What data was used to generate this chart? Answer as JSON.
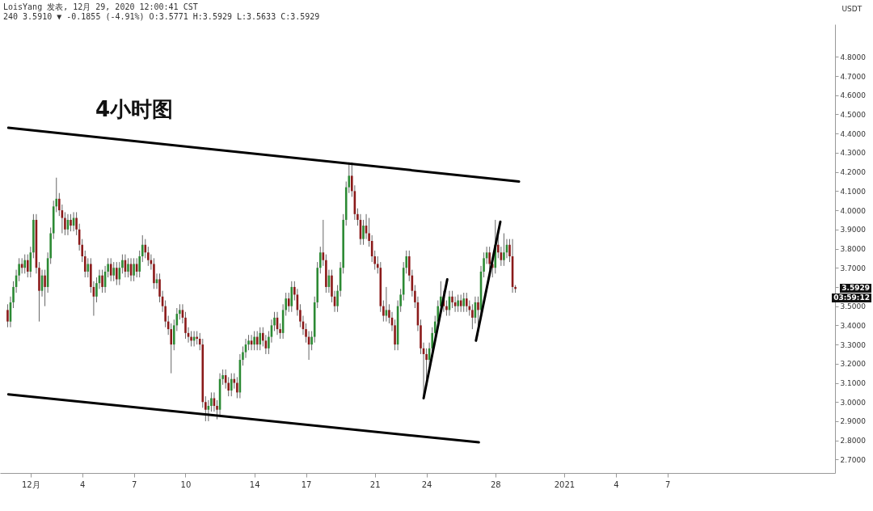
{
  "chart_data": {
    "type": "candlestick",
    "title": "4小时图",
    "ylabel": "USDT",
    "annotations": [
      "LoisYang 发表, 12月 29, 2020 12:00:41 CST",
      "240 3.5910 ▼ -0.1855 (-4.91%) O:3.5771 H:3.5929 L:3.5633 C:3.5929",
      "3.5929",
      "03:59:12"
    ],
    "xlim": [
      "2020-11-29T11:00",
      "2021-01-16T12:00"
    ],
    "ylim": [
      2.63,
      4.97
    ],
    "xticks": [
      {
        "value": "2020-12-01",
        "label": "12月"
      },
      {
        "value": "2020-12-04",
        "label": "4"
      },
      {
        "value": "2020-12-07",
        "label": "7"
      },
      {
        "value": "2020-12-10",
        "label": "10"
      },
      {
        "value": "2020-12-14",
        "label": "14"
      },
      {
        "value": "2020-12-17",
        "label": "17"
      },
      {
        "value": "2020-12-21",
        "label": "21"
      },
      {
        "value": "2020-12-24",
        "label": "24"
      },
      {
        "value": "2020-12-28",
        "label": "28"
      },
      {
        "value": "2021-01-01",
        "label": "2021"
      },
      {
        "value": "2021-01-04",
        "label": "4"
      },
      {
        "value": "2021-01-07",
        "label": "7"
      }
    ],
    "yticks": [
      {
        "value": 2.7,
        "label": "2.7000"
      },
      {
        "value": 2.8,
        "label": "2.8000"
      },
      {
        "value": 2.9,
        "label": "2.9000"
      },
      {
        "value": 3.0,
        "label": "3.0000"
      },
      {
        "value": 3.1,
        "label": "3.1000"
      },
      {
        "value": 3.2,
        "label": "3.2000"
      },
      {
        "value": 3.3,
        "label": "3.3000"
      },
      {
        "value": 3.4,
        "label": "3.4000"
      },
      {
        "value": 3.5,
        "label": "3.5000"
      },
      {
        "value": 3.6,
        "label": null
      },
      {
        "value": 3.7,
        "label": "3.7000"
      },
      {
        "value": 3.8,
        "label": "3.8000"
      },
      {
        "value": 3.9,
        "label": "3.9000"
      },
      {
        "value": 4.0,
        "label": "4.0000"
      },
      {
        "value": 4.1,
        "label": "4.1000"
      },
      {
        "value": 4.2,
        "label": "4.2000"
      },
      {
        "value": 4.3,
        "label": "4.3000"
      },
      {
        "value": 4.4,
        "label": "4.4000"
      },
      {
        "value": 4.5,
        "label": "4.5000"
      },
      {
        "value": 4.6,
        "label": "4.6000"
      },
      {
        "value": 4.7,
        "label": "4.7000"
      },
      {
        "value": 4.8,
        "label": "4.8000"
      }
    ],
    "x": [
      "2020-11-29T16:00",
      "2020-11-29T20:00",
      "2020-11-30T00:00",
      "2020-11-30T04:00",
      "2020-11-30T08:00",
      "2020-11-30T12:00",
      "2020-11-30T16:00",
      "2020-11-30T20:00",
      "2020-12-01T00:00",
      "2020-12-01T04:00",
      "2020-12-01T08:00",
      "2020-12-01T12:00",
      "2020-12-01T16:00",
      "2020-12-01T20:00",
      "2020-12-02T00:00",
      "2020-12-02T04:00",
      "2020-12-02T08:00",
      "2020-12-02T12:00",
      "2020-12-02T16:00",
      "2020-12-02T20:00",
      "2020-12-03T00:00",
      "2020-12-03T04:00",
      "2020-12-03T08:00",
      "2020-12-03T12:00",
      "2020-12-03T16:00",
      "2020-12-03T20:00",
      "2020-12-04T00:00",
      "2020-12-04T04:00",
      "2020-12-04T08:00",
      "2020-12-04T12:00",
      "2020-12-04T16:00",
      "2020-12-04T20:00",
      "2020-12-05T00:00",
      "2020-12-05T04:00",
      "2020-12-05T08:00",
      "2020-12-05T12:00",
      "2020-12-05T16:00",
      "2020-12-05T20:00",
      "2020-12-06T00:00",
      "2020-12-06T04:00",
      "2020-12-06T08:00",
      "2020-12-06T12:00",
      "2020-12-06T16:00",
      "2020-12-06T20:00",
      "2020-12-07T00:00",
      "2020-12-07T04:00",
      "2020-12-07T08:00",
      "2020-12-07T12:00",
      "2020-12-07T16:00",
      "2020-12-07T20:00",
      "2020-12-08T00:00",
      "2020-12-08T04:00",
      "2020-12-08T08:00",
      "2020-12-08T12:00",
      "2020-12-08T16:00",
      "2020-12-08T20:00",
      "2020-12-09T00:00",
      "2020-12-09T04:00",
      "2020-12-09T08:00",
      "2020-12-09T12:00",
      "2020-12-09T16:00",
      "2020-12-09T20:00",
      "2020-12-10T00:00",
      "2020-12-10T04:00",
      "2020-12-10T08:00",
      "2020-12-10T12:00",
      "2020-12-10T16:00",
      "2020-12-10T20:00",
      "2020-12-11T00:00",
      "2020-12-11T04:00",
      "2020-12-11T08:00",
      "2020-12-11T12:00",
      "2020-12-11T16:00",
      "2020-12-11T20:00",
      "2020-12-12T00:00",
      "2020-12-12T04:00",
      "2020-12-12T08:00",
      "2020-12-12T12:00",
      "2020-12-12T16:00",
      "2020-12-12T20:00",
      "2020-12-13T00:00",
      "2020-12-13T04:00",
      "2020-12-13T08:00",
      "2020-12-13T12:00",
      "2020-12-13T16:00",
      "2020-12-13T20:00",
      "2020-12-14T00:00",
      "2020-12-14T04:00",
      "2020-12-14T08:00",
      "2020-12-14T12:00",
      "2020-12-14T16:00",
      "2020-12-14T20:00",
      "2020-12-15T00:00",
      "2020-12-15T04:00",
      "2020-12-15T08:00",
      "2020-12-15T12:00",
      "2020-12-15T16:00",
      "2020-12-15T20:00",
      "2020-12-16T00:00",
      "2020-12-16T04:00",
      "2020-12-16T08:00",
      "2020-12-16T12:00",
      "2020-12-16T16:00",
      "2020-12-16T20:00",
      "2020-12-17T00:00",
      "2020-12-17T04:00",
      "2020-12-17T08:00",
      "2020-12-17T12:00",
      "2020-12-17T16:00",
      "2020-12-17T20:00",
      "2020-12-18T00:00",
      "2020-12-18T04:00",
      "2020-12-18T08:00",
      "2020-12-18T12:00",
      "2020-12-18T16:00",
      "2020-12-18T20:00",
      "2020-12-19T00:00",
      "2020-12-19T04:00",
      "2020-12-19T08:00",
      "2020-12-19T12:00",
      "2020-12-19T16:00",
      "2020-12-19T20:00",
      "2020-12-20T00:00",
      "2020-12-20T04:00",
      "2020-12-20T08:00",
      "2020-12-20T12:00",
      "2020-12-20T16:00",
      "2020-12-20T20:00",
      "2020-12-21T00:00",
      "2020-12-21T04:00",
      "2020-12-21T08:00",
      "2020-12-21T12:00",
      "2020-12-21T16:00",
      "2020-12-21T20:00",
      "2020-12-22T00:00",
      "2020-12-22T04:00",
      "2020-12-22T08:00",
      "2020-12-22T12:00",
      "2020-12-22T16:00",
      "2020-12-22T20:00",
      "2020-12-23T00:00",
      "2020-12-23T04:00",
      "2020-12-23T08:00",
      "2020-12-23T12:00",
      "2020-12-23T16:00",
      "2020-12-23T20:00",
      "2020-12-24T00:00",
      "2020-12-24T04:00",
      "2020-12-24T08:00",
      "2020-12-24T12:00",
      "2020-12-24T16:00",
      "2020-12-24T20:00",
      "2020-12-25T00:00",
      "2020-12-25T04:00",
      "2020-12-25T08:00",
      "2020-12-25T12:00",
      "2020-12-25T16:00",
      "2020-12-25T20:00",
      "2020-12-26T00:00",
      "2020-12-26T04:00",
      "2020-12-26T08:00",
      "2020-12-26T12:00",
      "2020-12-26T16:00",
      "2020-12-26T20:00",
      "2020-12-27T00:00",
      "2020-12-27T04:00",
      "2020-12-27T08:00",
      "2020-12-27T12:00",
      "2020-12-27T16:00",
      "2020-12-27T20:00",
      "2020-12-28T00:00",
      "2020-12-28T04:00",
      "2020-12-28T08:00",
      "2020-12-28T12:00",
      "2020-12-28T16:00",
      "2020-12-28T20:00",
      "2020-12-29T00:00",
      "2020-12-29T04:00"
    ],
    "ohlc": [
      [
        3.48,
        3.51,
        3.39,
        3.42
      ],
      [
        3.42,
        3.55,
        3.39,
        3.52
      ],
      [
        3.52,
        3.63,
        3.49,
        3.6
      ],
      [
        3.6,
        3.69,
        3.57,
        3.66
      ],
      [
        3.66,
        3.75,
        3.63,
        3.72
      ],
      [
        3.72,
        3.75,
        3.67,
        3.7
      ],
      [
        3.7,
        3.77,
        3.67,
        3.74
      ],
      [
        3.74,
        3.77,
        3.65,
        3.68
      ],
      [
        3.68,
        3.81,
        3.65,
        3.78
      ],
      [
        3.78,
        3.98,
        3.75,
        3.95
      ],
      [
        3.95,
        3.98,
        3.67,
        3.7
      ],
      [
        3.7,
        3.73,
        3.42,
        3.58
      ],
      [
        3.58,
        3.69,
        3.55,
        3.66
      ],
      [
        3.66,
        3.69,
        3.5,
        3.6
      ],
      [
        3.6,
        3.78,
        3.57,
        3.75
      ],
      [
        3.75,
        3.91,
        3.72,
        3.88
      ],
      [
        3.88,
        4.05,
        3.85,
        4.02
      ],
      [
        4.02,
        4.17,
        3.99,
        4.06
      ],
      [
        4.06,
        4.09,
        3.97,
        4.0
      ],
      [
        4.0,
        4.03,
        3.88,
        3.96
      ],
      [
        3.96,
        3.99,
        3.87,
        3.9
      ],
      [
        3.9,
        3.98,
        3.87,
        3.95
      ],
      [
        3.95,
        3.98,
        3.89,
        3.92
      ],
      [
        3.92,
        3.99,
        3.89,
        3.96
      ],
      [
        3.96,
        3.99,
        3.87,
        3.9
      ],
      [
        3.9,
        3.93,
        3.79,
        3.82
      ],
      [
        3.82,
        3.85,
        3.73,
        3.76
      ],
      [
        3.76,
        3.79,
        3.65,
        3.68
      ],
      [
        3.68,
        3.75,
        3.65,
        3.72
      ],
      [
        3.72,
        3.75,
        3.57,
        3.6
      ],
      [
        3.6,
        3.63,
        3.45,
        3.55
      ],
      [
        3.55,
        3.65,
        3.52,
        3.62
      ],
      [
        3.62,
        3.69,
        3.59,
        3.66
      ],
      [
        3.66,
        3.69,
        3.57,
        3.6
      ],
      [
        3.6,
        3.71,
        3.57,
        3.68
      ],
      [
        3.68,
        3.75,
        3.65,
        3.72
      ],
      [
        3.72,
        3.75,
        3.63,
        3.66
      ],
      [
        3.66,
        3.73,
        3.63,
        3.7
      ],
      [
        3.7,
        3.73,
        3.61,
        3.64
      ],
      [
        3.64,
        3.73,
        3.61,
        3.7
      ],
      [
        3.7,
        3.77,
        3.67,
        3.74
      ],
      [
        3.74,
        3.77,
        3.65,
        3.68
      ],
      [
        3.68,
        3.75,
        3.65,
        3.72
      ],
      [
        3.72,
        3.75,
        3.63,
        3.66
      ],
      [
        3.66,
        3.75,
        3.63,
        3.72
      ],
      [
        3.72,
        3.75,
        3.65,
        3.68
      ],
      [
        3.68,
        3.79,
        3.65,
        3.76
      ],
      [
        3.76,
        3.87,
        3.73,
        3.82
      ],
      [
        3.82,
        3.85,
        3.75,
        3.78
      ],
      [
        3.78,
        3.81,
        3.71,
        3.74
      ],
      [
        3.74,
        3.77,
        3.69,
        3.72
      ],
      [
        3.72,
        3.75,
        3.59,
        3.62
      ],
      [
        3.62,
        3.67,
        3.59,
        3.64
      ],
      [
        3.64,
        3.67,
        3.52,
        3.55
      ],
      [
        3.55,
        3.58,
        3.47,
        3.5
      ],
      [
        3.5,
        3.53,
        3.39,
        3.42
      ],
      [
        3.42,
        3.45,
        3.35,
        3.38
      ],
      [
        3.38,
        3.41,
        3.15,
        3.3
      ],
      [
        3.3,
        3.43,
        3.27,
        3.4
      ],
      [
        3.4,
        3.49,
        3.37,
        3.46
      ],
      [
        3.46,
        3.51,
        3.43,
        3.48
      ],
      [
        3.48,
        3.51,
        3.41,
        3.44
      ],
      [
        3.44,
        3.47,
        3.33,
        3.36
      ],
      [
        3.36,
        3.39,
        3.31,
        3.34
      ],
      [
        3.34,
        3.37,
        3.29,
        3.32
      ],
      [
        3.32,
        3.37,
        3.29,
        3.34
      ],
      [
        3.34,
        3.37,
        3.3,
        3.33
      ],
      [
        3.33,
        3.36,
        3.27,
        3.3
      ],
      [
        3.3,
        3.33,
        2.97,
        3.0
      ],
      [
        3.0,
        3.03,
        2.9,
        2.96
      ],
      [
        2.96,
        3.01,
        2.9,
        2.98
      ],
      [
        2.98,
        3.05,
        2.95,
        3.02
      ],
      [
        3.02,
        3.05,
        2.95,
        2.98
      ],
      [
        2.98,
        3.01,
        2.91,
        2.96
      ],
      [
        2.96,
        3.15,
        2.93,
        3.12
      ],
      [
        3.12,
        3.17,
        3.09,
        3.14
      ],
      [
        3.14,
        3.17,
        3.07,
        3.1
      ],
      [
        3.1,
        3.13,
        3.03,
        3.06
      ],
      [
        3.06,
        3.15,
        3.03,
        3.12
      ],
      [
        3.12,
        3.15,
        3.07,
        3.1
      ],
      [
        3.1,
        3.13,
        3.02,
        3.05
      ],
      [
        3.05,
        3.25,
        3.02,
        3.22
      ],
      [
        3.22,
        3.29,
        3.19,
        3.26
      ],
      [
        3.26,
        3.33,
        3.23,
        3.3
      ],
      [
        3.3,
        3.35,
        3.27,
        3.32
      ],
      [
        3.32,
        3.35,
        3.27,
        3.3
      ],
      [
        3.3,
        3.37,
        3.27,
        3.34
      ],
      [
        3.34,
        3.37,
        3.27,
        3.3
      ],
      [
        3.3,
        3.39,
        3.27,
        3.36
      ],
      [
        3.36,
        3.39,
        3.29,
        3.32
      ],
      [
        3.32,
        3.35,
        3.25,
        3.28
      ],
      [
        3.28,
        3.37,
        3.25,
        3.34
      ],
      [
        3.34,
        3.43,
        3.31,
        3.4
      ],
      [
        3.4,
        3.47,
        3.37,
        3.44
      ],
      [
        3.44,
        3.47,
        3.35,
        3.38
      ],
      [
        3.38,
        3.41,
        3.33,
        3.36
      ],
      [
        3.36,
        3.51,
        3.33,
        3.48
      ],
      [
        3.48,
        3.57,
        3.45,
        3.54
      ],
      [
        3.54,
        3.57,
        3.47,
        3.5
      ],
      [
        3.5,
        3.63,
        3.47,
        3.6
      ],
      [
        3.6,
        3.63,
        3.53,
        3.56
      ],
      [
        3.56,
        3.59,
        3.45,
        3.48
      ],
      [
        3.48,
        3.51,
        3.39,
        3.42
      ],
      [
        3.42,
        3.45,
        3.35,
        3.38
      ],
      [
        3.38,
        3.41,
        3.31,
        3.34
      ],
      [
        3.34,
        3.37,
        3.22,
        3.3
      ],
      [
        3.3,
        3.37,
        3.27,
        3.34
      ],
      [
        3.34,
        3.55,
        3.31,
        3.52
      ],
      [
        3.52,
        3.73,
        3.49,
        3.7
      ],
      [
        3.7,
        3.81,
        3.67,
        3.78
      ],
      [
        3.78,
        3.95,
        3.71,
        3.74
      ],
      [
        3.74,
        3.77,
        3.57,
        3.6
      ],
      [
        3.6,
        3.69,
        3.57,
        3.66
      ],
      [
        3.66,
        3.69,
        3.52,
        3.55
      ],
      [
        3.55,
        3.58,
        3.47,
        3.5
      ],
      [
        3.5,
        3.61,
        3.47,
        3.58
      ],
      [
        3.58,
        3.73,
        3.55,
        3.7
      ],
      [
        3.7,
        3.98,
        3.67,
        3.95
      ],
      [
        3.95,
        4.15,
        3.92,
        4.12
      ],
      [
        4.12,
        4.25,
        4.09,
        4.18
      ],
      [
        4.18,
        4.25,
        4.07,
        4.1
      ],
      [
        4.1,
        4.13,
        3.95,
        3.98
      ],
      [
        3.98,
        4.01,
        3.92,
        3.95
      ],
      [
        3.95,
        3.98,
        3.82,
        3.85
      ],
      [
        3.85,
        3.95,
        3.82,
        3.92
      ],
      [
        3.92,
        3.98,
        3.85,
        3.88
      ],
      [
        3.88,
        3.96,
        3.81,
        3.84
      ],
      [
        3.84,
        3.87,
        3.73,
        3.76
      ],
      [
        3.76,
        3.79,
        3.69,
        3.72
      ],
      [
        3.72,
        3.76,
        3.67,
        3.7
      ],
      [
        3.7,
        3.73,
        3.47,
        3.5
      ],
      [
        3.5,
        3.53,
        3.42,
        3.45
      ],
      [
        3.45,
        3.6,
        3.42,
        3.48
      ],
      [
        3.48,
        3.51,
        3.41,
        3.44
      ],
      [
        3.44,
        3.47,
        3.37,
        3.4
      ],
      [
        3.4,
        3.43,
        3.27,
        3.3
      ],
      [
        3.3,
        3.53,
        3.27,
        3.5
      ],
      [
        3.5,
        3.59,
        3.47,
        3.56
      ],
      [
        3.56,
        3.73,
        3.53,
        3.7
      ],
      [
        3.7,
        3.79,
        3.67,
        3.76
      ],
      [
        3.76,
        3.79,
        3.63,
        3.66
      ],
      [
        3.66,
        3.69,
        3.55,
        3.58
      ],
      [
        3.58,
        3.61,
        3.49,
        3.52
      ],
      [
        3.52,
        3.55,
        3.37,
        3.4
      ],
      [
        3.4,
        3.43,
        3.25,
        3.28
      ],
      [
        3.28,
        3.31,
        3.02,
        3.25
      ],
      [
        3.25,
        3.28,
        3.12,
        3.22
      ],
      [
        3.22,
        3.31,
        3.19,
        3.28
      ],
      [
        3.28,
        3.39,
        3.25,
        3.36
      ],
      [
        3.36,
        3.45,
        3.33,
        3.42
      ],
      [
        3.42,
        3.53,
        3.39,
        3.5
      ],
      [
        3.5,
        3.63,
        3.47,
        3.55
      ],
      [
        3.55,
        3.58,
        3.47,
        3.5
      ],
      [
        3.5,
        3.53,
        3.45,
        3.48
      ],
      [
        3.48,
        3.58,
        3.45,
        3.55
      ],
      [
        3.55,
        3.58,
        3.49,
        3.52
      ],
      [
        3.52,
        3.55,
        3.47,
        3.5
      ],
      [
        3.5,
        3.56,
        3.47,
        3.53
      ],
      [
        3.53,
        3.56,
        3.47,
        3.5
      ],
      [
        3.5,
        3.57,
        3.47,
        3.54
      ],
      [
        3.54,
        3.57,
        3.47,
        3.5
      ],
      [
        3.5,
        3.53,
        3.45,
        3.48
      ],
      [
        3.48,
        3.51,
        3.38,
        3.44
      ],
      [
        3.44,
        3.55,
        3.41,
        3.52
      ],
      [
        3.52,
        3.55,
        3.35,
        3.48
      ],
      [
        3.48,
        3.71,
        3.45,
        3.68
      ],
      [
        3.68,
        3.78,
        3.65,
        3.75
      ],
      [
        3.75,
        3.81,
        3.72,
        3.78
      ],
      [
        3.78,
        3.81,
        3.69,
        3.72
      ],
      [
        3.72,
        3.75,
        3.65,
        3.7
      ],
      [
        3.7,
        3.95,
        3.67,
        3.82
      ],
      [
        3.82,
        3.9,
        3.75,
        3.78
      ],
      [
        3.78,
        3.81,
        3.71,
        3.74
      ],
      [
        3.74,
        3.88,
        3.71,
        3.78
      ],
      [
        3.78,
        3.85,
        3.75,
        3.82
      ],
      [
        3.82,
        3.85,
        3.73,
        3.76
      ],
      [
        3.76,
        3.85,
        3.57,
        3.6
      ],
      [
        3.6,
        3.61,
        3.57,
        3.59
      ]
    ],
    "series": [
      {
        "type": "line",
        "color": "#000000",
        "x": [
          "2020-11-29T17:00",
          "2020-12-29T09:00"
        ],
        "values": [
          4.43,
          4.15
        ]
      },
      {
        "type": "line",
        "color": "#000000",
        "x": [
          "2020-11-29T17:00",
          "2020-12-27T01:00"
        ],
        "values": [
          3.04,
          2.79
        ]
      },
      {
        "type": "line",
        "color": "#000000",
        "x": [
          "2020-12-23T20:00",
          "2020-12-25T05:00"
        ],
        "values": [
          3.02,
          3.64
        ]
      },
      {
        "type": "line",
        "color": "#000000",
        "x": [
          "2020-12-26T21:00",
          "2020-12-28T07:00"
        ],
        "values": [
          3.32,
          3.94
        ]
      }
    ]
  }
}
